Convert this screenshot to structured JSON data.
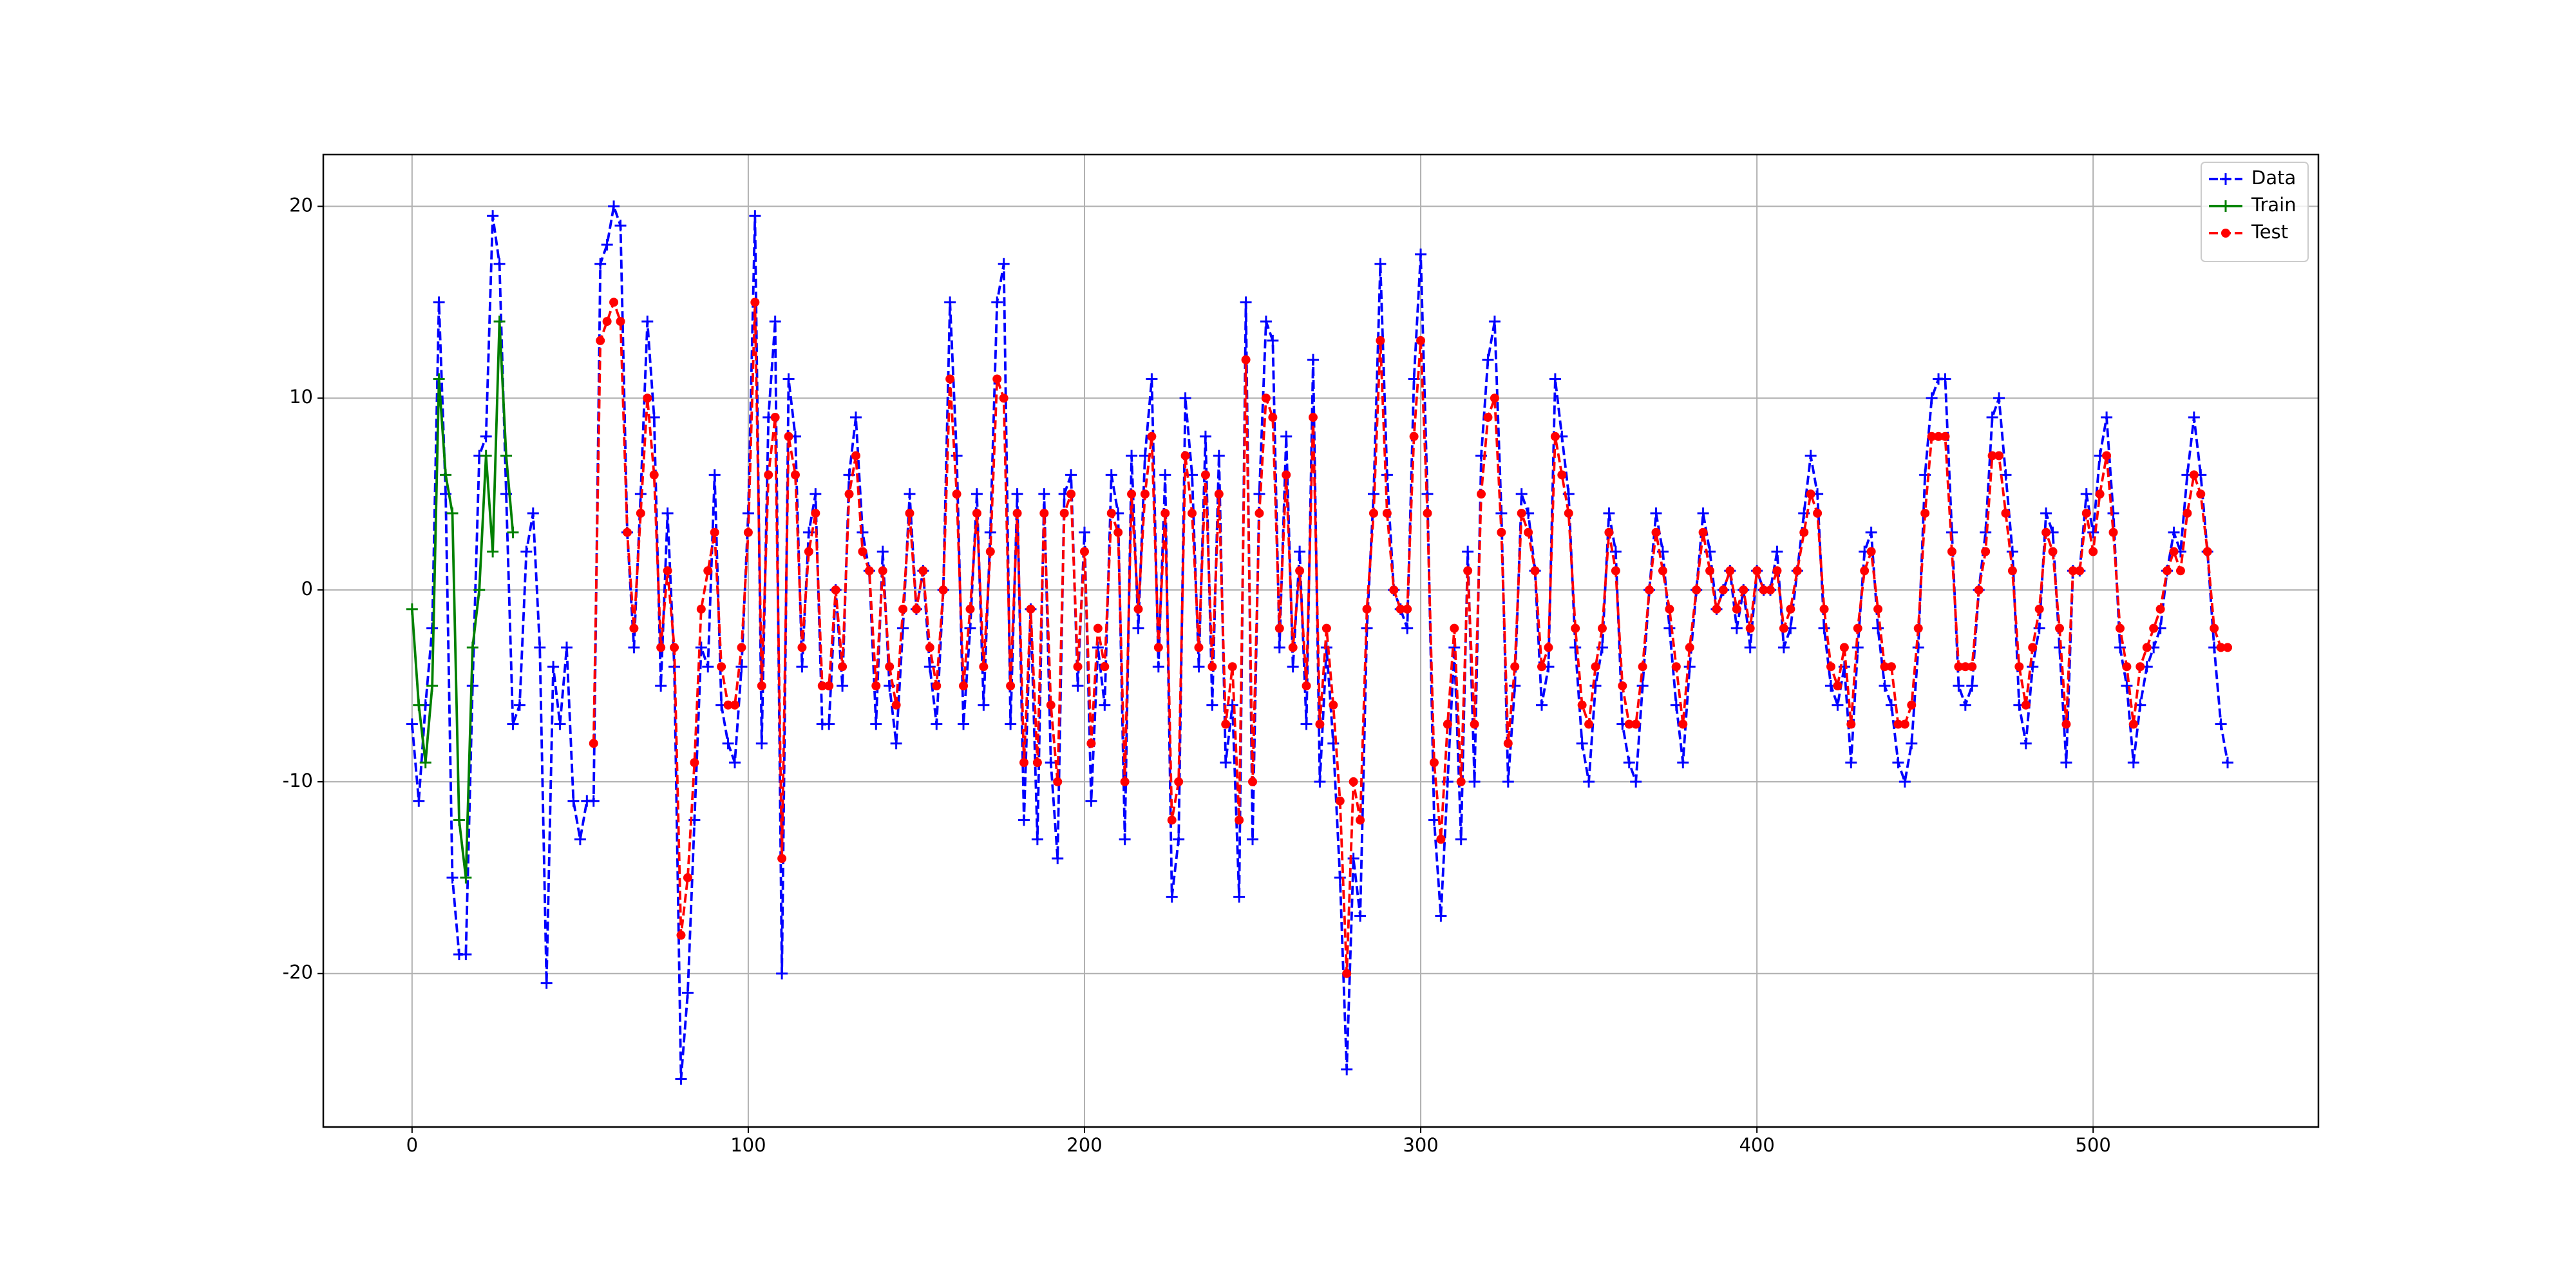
{
  "chart_data": {
    "type": "line",
    "x": [
      0,
      2,
      4,
      6,
      8,
      10,
      12,
      14,
      16,
      18,
      20,
      22,
      24,
      26,
      28,
      30,
      32,
      34,
      36,
      38,
      40,
      42,
      44,
      46,
      48,
      50,
      52,
      54,
      56,
      58,
      60,
      62,
      64,
      66,
      68,
      70,
      72,
      74,
      76,
      78,
      80,
      82,
      84,
      86,
      88,
      90,
      92,
      94,
      96,
      98,
      100,
      102,
      104,
      106,
      108,
      110,
      112,
      114,
      116,
      118,
      120,
      122,
      124,
      126,
      128,
      130,
      132,
      134,
      136,
      138,
      140,
      142,
      144,
      146,
      148,
      150,
      152,
      154,
      156,
      158,
      160,
      162,
      164,
      166,
      168,
      170,
      172,
      174,
      176,
      178,
      180,
      182,
      184,
      186,
      188,
      190,
      192,
      194,
      196,
      198,
      200,
      202,
      204,
      206,
      208,
      210,
      212,
      214,
      216,
      218,
      220,
      222,
      224,
      226,
      228,
      230,
      232,
      234,
      236,
      238,
      240,
      242,
      244,
      246,
      248,
      250,
      252,
      254,
      256,
      258,
      260,
      262,
      264,
      266,
      268,
      270,
      272,
      274,
      276,
      278,
      280,
      282,
      284,
      286,
      288,
      290,
      292,
      294,
      296,
      298,
      300,
      302,
      304,
      306,
      308,
      310,
      312,
      314,
      316,
      318,
      320,
      322,
      324,
      326,
      328,
      330,
      332,
      334,
      336,
      338,
      340,
      342,
      344,
      346,
      348,
      350,
      352,
      354,
      356,
      358,
      360,
      362,
      364,
      366,
      368,
      370,
      372,
      374,
      376,
      378,
      380,
      382,
      384,
      386,
      388,
      390,
      392,
      394,
      396,
      398,
      400,
      402,
      404,
      406,
      408,
      410,
      412,
      414,
      416,
      418,
      420,
      422,
      424,
      426,
      428,
      430,
      432,
      434,
      436,
      438,
      440,
      442,
      444,
      446,
      448,
      450,
      452,
      454,
      456,
      458,
      460,
      462,
      464,
      466,
      468,
      470,
      472,
      474,
      476,
      478,
      480,
      482,
      484,
      486,
      488,
      490,
      492,
      494,
      496,
      498,
      500,
      502,
      504,
      506,
      508,
      510,
      512,
      514,
      516,
      518,
      520,
      522,
      524,
      526,
      528,
      530,
      532,
      534,
      536,
      538,
      540
    ],
    "series": [
      {
        "name": "Data",
        "color": "#0000ff",
        "linestyle": "dashed",
        "marker": "+",
        "values": [
          -7,
          -11,
          -6,
          -2,
          15,
          5,
          -15,
          -19,
          -19,
          -5,
          7,
          8,
          19.5,
          17,
          5,
          -7,
          -6,
          2,
          4,
          -3,
          -20.5,
          -4,
          -7,
          -3,
          -11,
          -13,
          -11,
          -11,
          17,
          18,
          20,
          19,
          3,
          -3,
          5,
          14,
          9,
          -5,
          4,
          -4,
          -25.5,
          -21,
          -12,
          -3,
          -4,
          6,
          -6,
          -8,
          -9,
          -4,
          4,
          19.5,
          -8,
          9,
          14,
          -20,
          11,
          8,
          -4,
          3,
          5,
          -7,
          -7,
          0,
          -5,
          6,
          9,
          3,
          1,
          -7,
          2,
          -5,
          -8,
          -2,
          5,
          -1,
          1,
          -4,
          -7,
          0,
          15,
          7,
          -7,
          -2,
          5,
          -6,
          3,
          15,
          17,
          -7,
          5,
          -12,
          -1,
          -13,
          5,
          -9,
          -14,
          5,
          6,
          -5,
          3,
          -11,
          -3,
          -6,
          6,
          4,
          -13,
          7,
          -2,
          7,
          11,
          -4,
          6,
          -16,
          -13,
          10,
          6,
          -4,
          8,
          -6,
          7,
          -9,
          -6,
          -16,
          15,
          -13,
          5,
          14,
          13,
          -3,
          8,
          -4,
          2,
          -7,
          12,
          -10,
          -3,
          -8,
          -15,
          -25,
          -14,
          -17,
          -2,
          5,
          17,
          6,
          0,
          -1,
          -2,
          11,
          17.5,
          5,
          -12,
          -17,
          -10,
          -3,
          -13,
          2,
          -10,
          7,
          12,
          14,
          4,
          -10,
          -5,
          5,
          4,
          1,
          -6,
          -4,
          11,
          8,
          5,
          -3,
          -8,
          -10,
          -5,
          -3,
          4,
          2,
          -7,
          -9,
          -10,
          -5,
          0,
          4,
          2,
          -2,
          -6,
          -9,
          -4,
          0,
          4,
          2,
          -1,
          0,
          1,
          -2,
          0,
          -3,
          1,
          0,
          0,
          2,
          -3,
          -2,
          1,
          4,
          7,
          5,
          -2,
          -5,
          -6,
          -4,
          -9,
          -3,
          2,
          3,
          -2,
          -5,
          -6,
          -9,
          -10,
          -8,
          -3,
          6,
          10,
          11,
          11,
          3,
          -5,
          -6,
          -5,
          0,
          3,
          9,
          10,
          6,
          2,
          -6,
          -8,
          -4,
          -2,
          4,
          3,
          -3,
          -9,
          1,
          1,
          5,
          3,
          7,
          9,
          4,
          -3,
          -5,
          -9,
          -6,
          -4,
          -3,
          -2,
          1,
          3,
          2,
          6,
          9,
          6,
          2,
          -3,
          -7,
          -9
        ]
      },
      {
        "name": "Train",
        "color": "#008000",
        "linestyle": "solid",
        "marker": "+",
        "values": [
          -1,
          -6,
          -9,
          -5,
          11,
          6,
          4,
          -12,
          -15,
          -3,
          0,
          7,
          2,
          14,
          7,
          3,
          null,
          null,
          null,
          null,
          null,
          null,
          null,
          null,
          null,
          null,
          null,
          null,
          null,
          null,
          null,
          null,
          null,
          null,
          null,
          null,
          null,
          null,
          null,
          null,
          null,
          null,
          null,
          null,
          null,
          null,
          null,
          null,
          null,
          null,
          null,
          null,
          null,
          null,
          null,
          null,
          null,
          null,
          null,
          null,
          null,
          null,
          null,
          null,
          null,
          null,
          null,
          null,
          null,
          null,
          null,
          null,
          null,
          null,
          null,
          null,
          null,
          null,
          null,
          null,
          null,
          null,
          null,
          null,
          null,
          null,
          null,
          null,
          null,
          null,
          null,
          null,
          null,
          null,
          null,
          null,
          null,
          null,
          null,
          null,
          null,
          null,
          null,
          null,
          null,
          null,
          null,
          null,
          null,
          null,
          null,
          null,
          null,
          null,
          null,
          null,
          null,
          null,
          null,
          null,
          null,
          null,
          null,
          null,
          null,
          null,
          null,
          null,
          null,
          null,
          null,
          null,
          null,
          null,
          null,
          null,
          null,
          null,
          null,
          null,
          null,
          null,
          null,
          null,
          null,
          null,
          null,
          null,
          null,
          null,
          null,
          null,
          null,
          null,
          null,
          null,
          null,
          null,
          null,
          null,
          null,
          null,
          null,
          null,
          null,
          null,
          null,
          null,
          null,
          null,
          null,
          null,
          null,
          null,
          null,
          null,
          null,
          null,
          null,
          null,
          null,
          null,
          null,
          null,
          null,
          null,
          null,
          null,
          null,
          null,
          null,
          null,
          null,
          null,
          null,
          null,
          null,
          null,
          null,
          null,
          null,
          null,
          null,
          null,
          null,
          null,
          null,
          null,
          null,
          null,
          null,
          null,
          null,
          null,
          null,
          null,
          null,
          null,
          null,
          null,
          null,
          null,
          null,
          null,
          null,
          null,
          null,
          null,
          null,
          null,
          null,
          null,
          null,
          null,
          null,
          null,
          null,
          null,
          null,
          null,
          null,
          null,
          null,
          null,
          null,
          null,
          null,
          null,
          null,
          null,
          null,
          null,
          null,
          null,
          null,
          null,
          null,
          null,
          null,
          null,
          null,
          null,
          null,
          null,
          null,
          null,
          null,
          null,
          null,
          null,
          null
        ]
      },
      {
        "name": "Test",
        "color": "#ff0000",
        "linestyle": "dashed",
        "marker": "o",
        "values": [
          null,
          null,
          null,
          null,
          null,
          null,
          null,
          null,
          null,
          null,
          null,
          null,
          null,
          null,
          null,
          null,
          null,
          null,
          null,
          null,
          null,
          null,
          null,
          null,
          null,
          null,
          null,
          -8,
          13,
          14,
          15,
          14,
          3,
          -2,
          4,
          10,
          6,
          -3,
          1,
          -3,
          -18,
          -15,
          -9,
          -1,
          1,
          3,
          -4,
          -6,
          -6,
          -3,
          3,
          15,
          -5,
          6,
          9,
          -14,
          8,
          6,
          -3,
          2,
          4,
          -5,
          -5,
          0,
          -4,
          5,
          7,
          2,
          1,
          -5,
          1,
          -4,
          -6,
          -1,
          4,
          -1,
          1,
          -3,
          -5,
          0,
          11,
          5,
          -5,
          -1,
          4,
          -4,
          2,
          11,
          10,
          -5,
          4,
          -9,
          -1,
          -9,
          4,
          -6,
          -10,
          4,
          5,
          -4,
          2,
          -8,
          -2,
          -4,
          4,
          3,
          -10,
          5,
          -1,
          5,
          8,
          -3,
          4,
          -12,
          -10,
          7,
          4,
          -3,
          6,
          -4,
          5,
          -7,
          -4,
          -12,
          12,
          -10,
          4,
          10,
          9,
          -2,
          6,
          -3,
          1,
          -5,
          9,
          -7,
          -2,
          -6,
          -11,
          -20,
          -10,
          -12,
          -1,
          4,
          13,
          4,
          0,
          -1,
          -1,
          8,
          13,
          4,
          -9,
          -13,
          -7,
          -2,
          -10,
          1,
          -7,
          5,
          9,
          10,
          3,
          -8,
          -4,
          4,
          3,
          1,
          -4,
          -3,
          8,
          6,
          4,
          -2,
          -6,
          -7,
          -4,
          -2,
          3,
          1,
          -5,
          -7,
          -7,
          -4,
          0,
          3,
          1,
          -1,
          -4,
          -7,
          -3,
          0,
          3,
          1,
          -1,
          0,
          1,
          -1,
          0,
          -2,
          1,
          0,
          0,
          1,
          -2,
          -1,
          1,
          3,
          5,
          4,
          -1,
          -4,
          -5,
          -3,
          -7,
          -2,
          1,
          2,
          -1,
          -4,
          -4,
          -7,
          -7,
          -6,
          -2,
          4,
          8,
          8,
          8,
          2,
          -4,
          -4,
          -4,
          0,
          2,
          7,
          7,
          4,
          1,
          -4,
          -6,
          -3,
          -1,
          3,
          2,
          -2,
          -7,
          1,
          1,
          4,
          2,
          5,
          7,
          3,
          -2,
          -4,
          -7,
          -4,
          -3,
          -2,
          -1,
          1,
          2,
          1,
          4,
          6,
          5,
          2,
          -2,
          -3,
          -3
        ]
      }
    ],
    "xlim": [
      -26.4,
      567
    ],
    "ylim": [
      -28,
      22.7
    ],
    "xticks": [
      0,
      100,
      200,
      300,
      400,
      500
    ],
    "yticks": [
      -20,
      -10,
      0,
      10,
      20
    ],
    "grid": true,
    "legend": "upper right"
  }
}
